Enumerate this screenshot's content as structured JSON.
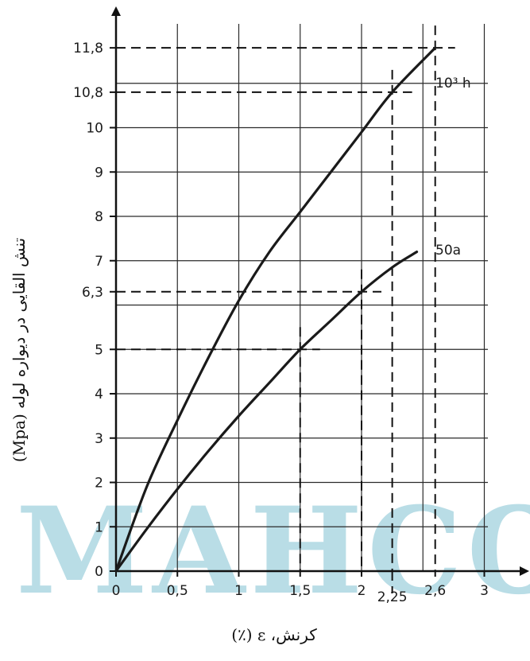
{
  "chart_data": {
    "type": "line",
    "title": "",
    "xlabel": "کرنش، ε (٪)",
    "ylabel": "تنش القایی در دیواره لوله (Mpa)",
    "xlim": [
      0,
      3
    ],
    "ylim": [
      0,
      12.5
    ],
    "x_ticks": [
      0,
      0.5,
      1,
      1.5,
      2,
      2.6,
      3
    ],
    "x_tick_labels": [
      "0",
      "0,5",
      "1",
      "1,5",
      "2",
      "2,6",
      "3"
    ],
    "x_extra_label": {
      "value": 2.25,
      "text": "2,25"
    },
    "y_ticks": [
      0,
      1,
      2,
      3,
      4,
      5,
      6.3,
      7,
      8,
      9,
      10,
      10.8,
      11.8
    ],
    "y_tick_labels": [
      "0",
      "1",
      "2",
      "3",
      "4",
      "5",
      "6,3",
      "7",
      "8",
      "9",
      "10",
      "10,8",
      "11,8"
    ],
    "grid": true,
    "series": [
      {
        "name": "10³ h",
        "color": "#1a1a1a",
        "x": [
          0,
          0.25,
          0.5,
          0.75,
          1,
          1.25,
          1.5,
          1.75,
          2,
          2.25,
          2.6
        ],
        "y": [
          0,
          1.9,
          3.4,
          4.8,
          6.1,
          7.2,
          8.1,
          9.0,
          9.9,
          10.8,
          11.8
        ]
      },
      {
        "name": "50a",
        "color": "#1a1a1a",
        "x": [
          0,
          0.25,
          0.5,
          0.75,
          1,
          1.25,
          1.5,
          1.75,
          2,
          2.25,
          2.45
        ],
        "y": [
          0,
          0.95,
          1.85,
          2.7,
          3.5,
          4.25,
          5.0,
          5.65,
          6.3,
          6.85,
          7.2
        ]
      }
    ],
    "reference_lines": [
      {
        "x": 1.5,
        "y": 5
      },
      {
        "x": 2,
        "y": 6.3
      },
      {
        "x": 2.25,
        "y": 10.8
      },
      {
        "x": 2.6,
        "y": 11.8
      }
    ],
    "watermark": "MAHCO"
  }
}
